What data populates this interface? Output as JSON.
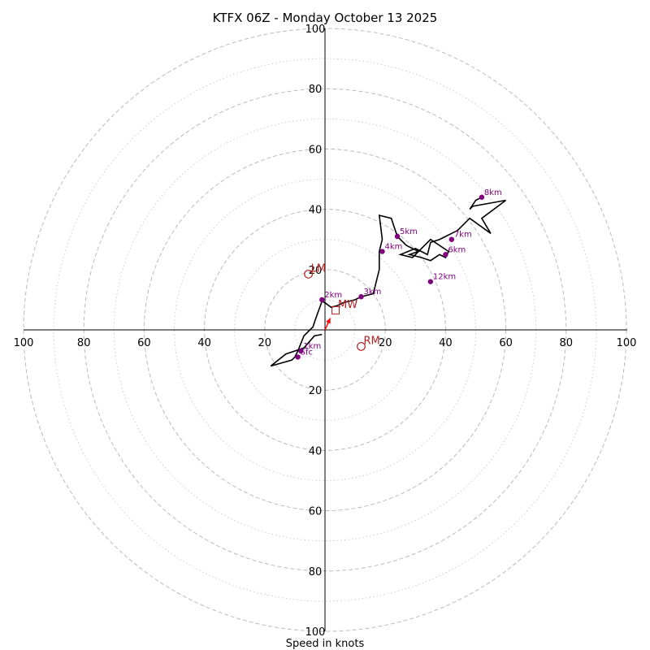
{
  "chart_data": {
    "type": "hodograph",
    "title": "KTFX 06Z - Monday October 13 2025",
    "xlabel": "Speed in knots",
    "range": [
      -100,
      100
    ],
    "major_rings": [
      20,
      40,
      60,
      80,
      100
    ],
    "minor_rings": [
      10,
      30,
      50,
      70,
      90
    ],
    "x_tick_labels": [
      "100",
      "80",
      "60",
      "40",
      "20",
      "20",
      "40",
      "60",
      "80",
      "100"
    ],
    "y_tick_labels_top": [
      "20",
      "40",
      "60",
      "80",
      "100"
    ],
    "y_tick_labels_bottom": [
      "20",
      "40",
      "60",
      "80",
      "100"
    ],
    "colors": {
      "trace": "#000000",
      "height_points": "#800080",
      "motion": "#b22222",
      "arrow": "#ff0000",
      "grid": "#bbbbbb"
    },
    "trace_u": [
      -1,
      -3.5,
      -7,
      -13,
      -18,
      -11,
      -10,
      -9,
      -7,
      -4,
      -3,
      -1,
      0,
      2,
      4,
      6,
      10,
      12,
      16,
      18,
      18,
      19,
      18,
      22,
      24,
      27,
      31,
      28,
      32,
      35,
      38,
      40,
      41,
      35,
      29,
      25,
      30,
      34,
      35,
      38,
      40,
      42,
      44,
      46,
      48,
      55,
      52,
      60,
      49,
      48,
      50,
      52
    ],
    "trace_v": [
      -1.5,
      -2,
      -6,
      -8,
      -12,
      -10,
      -9,
      -7,
      -2,
      1,
      4,
      9.5,
      9,
      7.5,
      8,
      9,
      10,
      11,
      12,
      20,
      26,
      30,
      38,
      37,
      31,
      28,
      26,
      25,
      24,
      23,
      25,
      24,
      26,
      30,
      24,
      25,
      27,
      25,
      29,
      30,
      31,
      32,
      33,
      35,
      37,
      32,
      37,
      43,
      41,
      40,
      43,
      44
    ],
    "height_points": [
      {
        "label": "Sfc",
        "u": -9,
        "v": -9
      },
      {
        "label": "1km",
        "u": -8,
        "v": -7
      },
      {
        "label": "2km",
        "u": -1,
        "v": 10
      },
      {
        "label": "3km",
        "u": 12,
        "v": 11
      },
      {
        "label": "4km",
        "u": 19,
        "v": 26
      },
      {
        "label": "5km",
        "u": 24,
        "v": 31
      },
      {
        "label": "6km",
        "u": 40,
        "v": 25
      },
      {
        "label": "7km",
        "u": 42,
        "v": 30
      },
      {
        "label": "8km",
        "u": 52,
        "v": 44
      },
      {
        "label": "12km",
        "u": 35,
        "v": 16
      }
    ],
    "storm_motion": [
      {
        "label": "LM",
        "u": -5.5,
        "v": 18.5
      },
      {
        "label": "RM",
        "u": 12,
        "v": -5.5
      },
      {
        "label": "MW",
        "u": 3.5,
        "v": 6.5
      }
    ]
  }
}
